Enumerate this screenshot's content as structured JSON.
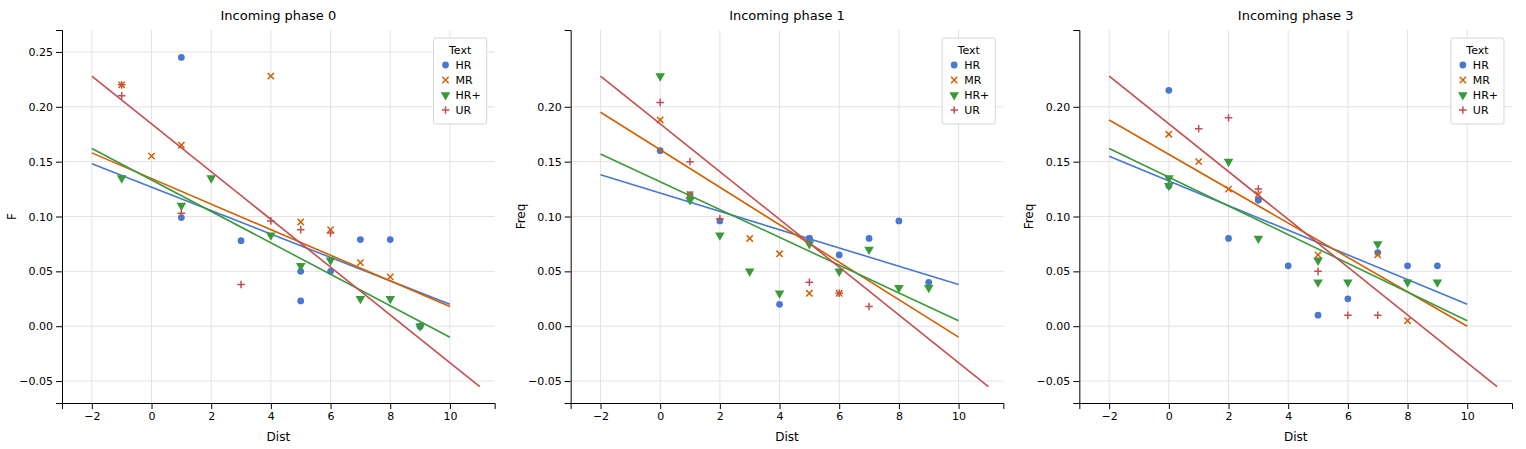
{
  "chart_data": [
    {
      "type": "scatter",
      "title": "Incoming phase 0",
      "xlabel": "Dist",
      "ylabel": "F",
      "xlim": [
        -3,
        11.5
      ],
      "ylim": [
        -0.07,
        0.27
      ],
      "xticks": [
        {
          "value": -2,
          "label": "−2"
        },
        0,
        2,
        4,
        6,
        8,
        10
      ],
      "yticks": [
        {
          "value": -0.05,
          "label": "−0.05"
        },
        {
          "value": 0.0,
          "label": "0.00"
        },
        0.05,
        {
          "value": 0.1,
          "label": "0.10"
        },
        0.15,
        {
          "value": 0.2,
          "label": "0.20"
        },
        0.25
      ],
      "grid": true,
      "legend": "upper right",
      "legend_title": "Text",
      "series": [
        {
          "name": "HR",
          "color": "#4878cf",
          "marker": "circle",
          "x": [
            1,
            1,
            3,
            5,
            5,
            6,
            7,
            8,
            9,
            9
          ],
          "values": [
            0.099,
            0.245,
            0.078,
            0.023,
            0.05,
            0.05,
            0.079,
            0.079,
            0.0,
            0.0
          ]
        },
        {
          "type": "line",
          "color": "#4878cf",
          "x": [
            -2,
            10
          ],
          "values": [
            0.148,
            0.02
          ]
        },
        {
          "name": "MR",
          "color": "#d45f00",
          "marker": "x",
          "x": [
            -1,
            0,
            1,
            4,
            5,
            6,
            7,
            8
          ],
          "values": [
            0.22,
            0.155,
            0.165,
            0.228,
            0.095,
            0.088,
            0.058,
            0.045
          ]
        },
        {
          "type": "line",
          "color": "#d45f00",
          "x": [
            -2,
            10
          ],
          "values": [
            0.158,
            0.018
          ]
        },
        {
          "name": "HR+",
          "color": "#3a9a3a",
          "marker": "triangle-down",
          "x": [
            -1,
            1,
            2,
            4,
            5,
            6,
            7,
            8,
            9
          ],
          "values": [
            0.135,
            0.11,
            0.135,
            0.083,
            0.055,
            0.06,
            0.025,
            0.025,
            0.0
          ]
        },
        {
          "type": "line",
          "color": "#3a9a3a",
          "x": [
            -2,
            10
          ],
          "values": [
            0.162,
            -0.01
          ]
        },
        {
          "name": "UR",
          "color": "#c44e52",
          "marker": "plus",
          "x": [
            -1,
            -1,
            1,
            3,
            4,
            5,
            6
          ],
          "values": [
            0.22,
            0.21,
            0.103,
            0.038,
            0.096,
            0.088,
            0.085
          ]
        },
        {
          "type": "line",
          "color": "#c44e52",
          "x": [
            -2,
            11
          ],
          "values": [
            0.228,
            -0.055
          ]
        }
      ]
    },
    {
      "type": "scatter",
      "title": "Incoming phase 1",
      "xlabel": "Dist",
      "ylabel": "Freq",
      "xlim": [
        -3,
        11.5
      ],
      "ylim": [
        -0.07,
        0.27
      ],
      "xticks": [
        {
          "value": -2,
          "label": "−2"
        },
        0,
        2,
        4,
        6,
        8,
        10
      ],
      "yticks": [
        {
          "value": -0.05,
          "label": "−0.05"
        },
        {
          "value": 0.0,
          "label": "0.00"
        },
        0.05,
        {
          "value": 0.1,
          "label": "0.10"
        },
        0.15,
        {
          "value": 0.2,
          "label": "0.20"
        }
      ],
      "grid": true,
      "legend": "upper right",
      "legend_title": "Text",
      "series": [
        {
          "name": "HR",
          "color": "#4878cf",
          "marker": "circle",
          "x": [
            0,
            1,
            2,
            4,
            5,
            5,
            6,
            7,
            8,
            9
          ],
          "values": [
            0.16,
            0.12,
            0.096,
            0.02,
            0.08,
            0.08,
            0.065,
            0.08,
            0.096,
            0.04
          ]
        },
        {
          "type": "line",
          "color": "#4878cf",
          "x": [
            -2,
            10
          ],
          "values": [
            0.138,
            0.038
          ]
        },
        {
          "name": "MR",
          "color": "#d45f00",
          "marker": "x",
          "x": [
            0,
            1,
            3,
            4,
            5,
            6
          ],
          "values": [
            0.188,
            0.12,
            0.08,
            0.066,
            0.03,
            0.03
          ]
        },
        {
          "type": "line",
          "color": "#d45f00",
          "x": [
            -2,
            10
          ],
          "values": [
            0.195,
            -0.01
          ]
        },
        {
          "name": "HR+",
          "color": "#3a9a3a",
          "marker": "triangle-down",
          "x": [
            0,
            1,
            2,
            3,
            4,
            5,
            6,
            7,
            8,
            9
          ],
          "values": [
            0.228,
            0.115,
            0.083,
            0.05,
            0.03,
            0.075,
            0.05,
            0.07,
            0.035,
            0.035
          ]
        },
        {
          "type": "line",
          "color": "#3a9a3a",
          "x": [
            -2,
            10
          ],
          "values": [
            0.157,
            0.005
          ]
        },
        {
          "name": "UR",
          "color": "#c44e52",
          "marker": "plus",
          "x": [
            0,
            1,
            2,
            5,
            6,
            7
          ],
          "values": [
            0.204,
            0.15,
            0.098,
            0.04,
            0.03,
            0.018
          ]
        },
        {
          "type": "line",
          "color": "#c44e52",
          "x": [
            -2,
            11
          ],
          "values": [
            0.228,
            -0.055
          ]
        }
      ]
    },
    {
      "type": "scatter",
      "title": "Incoming phase 3",
      "xlabel": "Dist",
      "ylabel": "Freq",
      "xlim": [
        -3,
        11.5
      ],
      "ylim": [
        -0.07,
        0.27
      ],
      "xticks": [
        {
          "value": -2,
          "label": "−2"
        },
        0,
        2,
        4,
        6,
        8,
        10
      ],
      "yticks": [
        {
          "value": -0.05,
          "label": "−0.05"
        },
        {
          "value": 0.0,
          "label": "0.00"
        },
        0.05,
        {
          "value": 0.1,
          "label": "0.10"
        },
        0.15,
        {
          "value": 0.2,
          "label": "0.20"
        }
      ],
      "grid": true,
      "legend": "upper right",
      "legend_title": "Text",
      "series": [
        {
          "name": "HR",
          "color": "#4878cf",
          "marker": "circle",
          "x": [
            0,
            0,
            2,
            3,
            3,
            4,
            5,
            6,
            7,
            8,
            9
          ],
          "values": [
            0.128,
            0.215,
            0.08,
            0.115,
            0.115,
            0.055,
            0.01,
            0.025,
            0.067,
            0.055,
            0.055
          ]
        },
        {
          "type": "line",
          "color": "#4878cf",
          "x": [
            -2,
            10
          ],
          "values": [
            0.155,
            0.02
          ]
        },
        {
          "name": "MR",
          "color": "#d45f00",
          "marker": "x",
          "x": [
            0,
            1,
            2,
            3,
            5,
            7,
            8
          ],
          "values": [
            0.175,
            0.15,
            0.125,
            0.12,
            0.065,
            0.065,
            0.005
          ]
        },
        {
          "type": "line",
          "color": "#d45f00",
          "x": [
            -2,
            10
          ],
          "values": [
            0.188,
            0.0
          ]
        },
        {
          "name": "HR+",
          "color": "#3a9a3a",
          "marker": "triangle-down",
          "x": [
            0,
            0,
            2,
            3,
            5,
            5,
            6,
            7,
            8,
            9
          ],
          "values": [
            0.128,
            0.135,
            0.15,
            0.08,
            0.04,
            0.06,
            0.04,
            0.075,
            0.04,
            0.04
          ]
        },
        {
          "type": "line",
          "color": "#3a9a3a",
          "x": [
            -2,
            10
          ],
          "values": [
            0.162,
            0.005
          ]
        },
        {
          "name": "UR",
          "color": "#c44e52",
          "marker": "plus",
          "x": [
            1,
            2,
            3,
            5,
            6,
            7
          ],
          "values": [
            0.18,
            0.19,
            0.125,
            0.05,
            0.01,
            0.01
          ]
        },
        {
          "type": "line",
          "color": "#c44e52",
          "x": [
            -2,
            11
          ],
          "values": [
            0.228,
            -0.055
          ]
        }
      ]
    }
  ]
}
